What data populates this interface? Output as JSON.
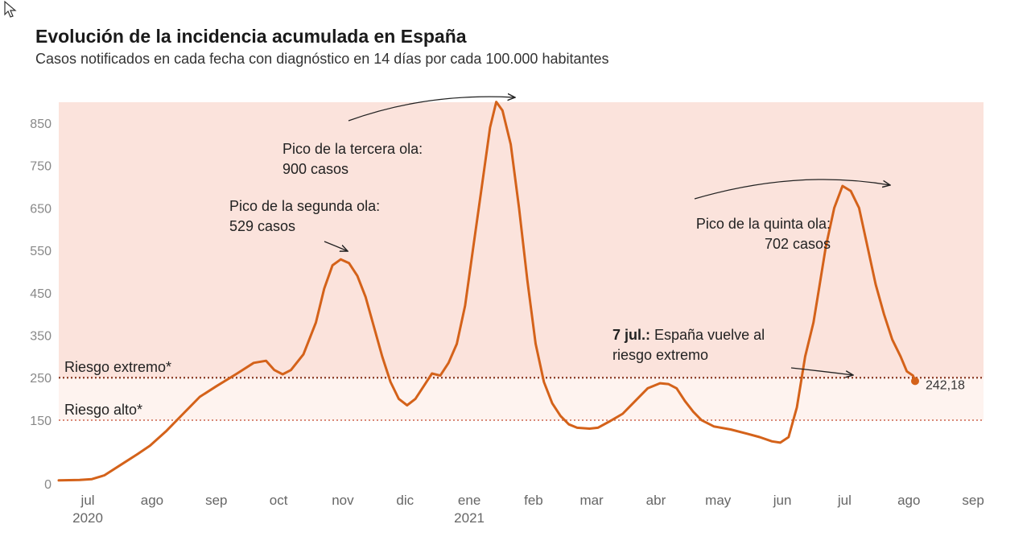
{
  "title": "Evolución de la incidencia acumulada en España",
  "subtitle": "Casos notificados en cada fecha con diagnóstico en 14 días por cada 100.000 habitantes",
  "colors": {
    "line": "#d4621a",
    "band_high": "#fbe3dc",
    "band_extreme": "#fef3ef",
    "extreme_line": "#8a3a24",
    "alto_line": "#d98a78"
  },
  "chart_data": {
    "type": "line",
    "title": "Evolución de la incidencia acumulada en España",
    "xlabel": "",
    "ylabel": "",
    "ylim": [
      0,
      900
    ],
    "y_ticks": [
      0,
      150,
      250,
      350,
      450,
      550,
      650,
      750,
      850
    ],
    "x_ticks": [
      {
        "label": "jul",
        "year": "2020",
        "day": 14
      },
      {
        "label": "ago",
        "year": "",
        "day": 45
      },
      {
        "label": "sep",
        "year": "",
        "day": 76
      },
      {
        "label": "oct",
        "year": "",
        "day": 106
      },
      {
        "label": "nov",
        "year": "",
        "day": 137
      },
      {
        "label": "dic",
        "year": "",
        "day": 167
      },
      {
        "label": "ene",
        "year": "2021",
        "day": 198
      },
      {
        "label": "feb",
        "year": "",
        "day": 229
      },
      {
        "label": "mar",
        "year": "",
        "day": 257
      },
      {
        "label": "abr",
        "year": "",
        "day": 288
      },
      {
        "label": "may",
        "year": "",
        "day": 318
      },
      {
        "label": "jun",
        "year": "",
        "day": 349
      },
      {
        "label": "jul",
        "year": "",
        "day": 379
      },
      {
        "label": "ago",
        "year": "",
        "day": 410
      },
      {
        "label": "sep",
        "year": "",
        "day": 441
      }
    ],
    "series": [
      {
        "name": "Incidencia acumulada 14 días",
        "points": [
          [
            0,
            8
          ],
          [
            10,
            9
          ],
          [
            16,
            11
          ],
          [
            22,
            20
          ],
          [
            30,
            45
          ],
          [
            38,
            70
          ],
          [
            44,
            90
          ],
          [
            52,
            125
          ],
          [
            60,
            165
          ],
          [
            68,
            205
          ],
          [
            76,
            230
          ],
          [
            86,
            260
          ],
          [
            94,
            285
          ],
          [
            100,
            290
          ],
          [
            104,
            268
          ],
          [
            108,
            258
          ],
          [
            112,
            268
          ],
          [
            118,
            305
          ],
          [
            124,
            380
          ],
          [
            128,
            460
          ],
          [
            132,
            515
          ],
          [
            136,
            529
          ],
          [
            140,
            520
          ],
          [
            144,
            490
          ],
          [
            148,
            440
          ],
          [
            152,
            370
          ],
          [
            156,
            300
          ],
          [
            160,
            240
          ],
          [
            164,
            200
          ],
          [
            168,
            185
          ],
          [
            172,
            200
          ],
          [
            176,
            230
          ],
          [
            180,
            260
          ],
          [
            184,
            255
          ],
          [
            188,
            285
          ],
          [
            192,
            330
          ],
          [
            196,
            420
          ],
          [
            200,
            560
          ],
          [
            204,
            700
          ],
          [
            208,
            840
          ],
          [
            211,
            900
          ],
          [
            214,
            880
          ],
          [
            218,
            800
          ],
          [
            222,
            650
          ],
          [
            226,
            480
          ],
          [
            230,
            330
          ],
          [
            234,
            240
          ],
          [
            238,
            190
          ],
          [
            242,
            160
          ],
          [
            246,
            140
          ],
          [
            250,
            132
          ],
          [
            256,
            130
          ],
          [
            260,
            132
          ],
          [
            266,
            148
          ],
          [
            272,
            165
          ],
          [
            278,
            195
          ],
          [
            284,
            225
          ],
          [
            290,
            237
          ],
          [
            294,
            235
          ],
          [
            298,
            225
          ],
          [
            302,
            195
          ],
          [
            306,
            170
          ],
          [
            310,
            150
          ],
          [
            316,
            135
          ],
          [
            324,
            128
          ],
          [
            332,
            118
          ],
          [
            338,
            110
          ],
          [
            344,
            100
          ],
          [
            348,
            97
          ],
          [
            352,
            110
          ],
          [
            356,
            180
          ],
          [
            360,
            300
          ],
          [
            364,
            380
          ],
          [
            366,
            440
          ],
          [
            370,
            560
          ],
          [
            374,
            650
          ],
          [
            378,
            702
          ],
          [
            382,
            690
          ],
          [
            386,
            650
          ],
          [
            390,
            560
          ],
          [
            394,
            470
          ],
          [
            398,
            400
          ],
          [
            402,
            340
          ],
          [
            406,
            300
          ],
          [
            409,
            265
          ],
          [
            412,
            255
          ],
          [
            413,
            242.18
          ]
        ]
      }
    ],
    "thresholds": [
      {
        "name": "Riesgo extremo*",
        "value": 250
      },
      {
        "name": "Riesgo alto*",
        "value": 150
      }
    ],
    "last_value_label": "242,18",
    "annotations": [
      {
        "id": "segunda",
        "lines": [
          "Pico de la segunda ola:",
          "529 casos"
        ],
        "align": "left"
      },
      {
        "id": "tercera",
        "lines": [
          "Pico de la tercera ola:",
          "900 casos"
        ],
        "align": "left"
      },
      {
        "id": "quinta",
        "lines": [
          "Pico de la quinta ola:",
          "702 casos"
        ],
        "align": "right"
      },
      {
        "id": "julio",
        "bold": "7 jul.:",
        "lines": [
          " España vuelve al",
          "riesgo extremo"
        ],
        "align": "left"
      }
    ]
  }
}
